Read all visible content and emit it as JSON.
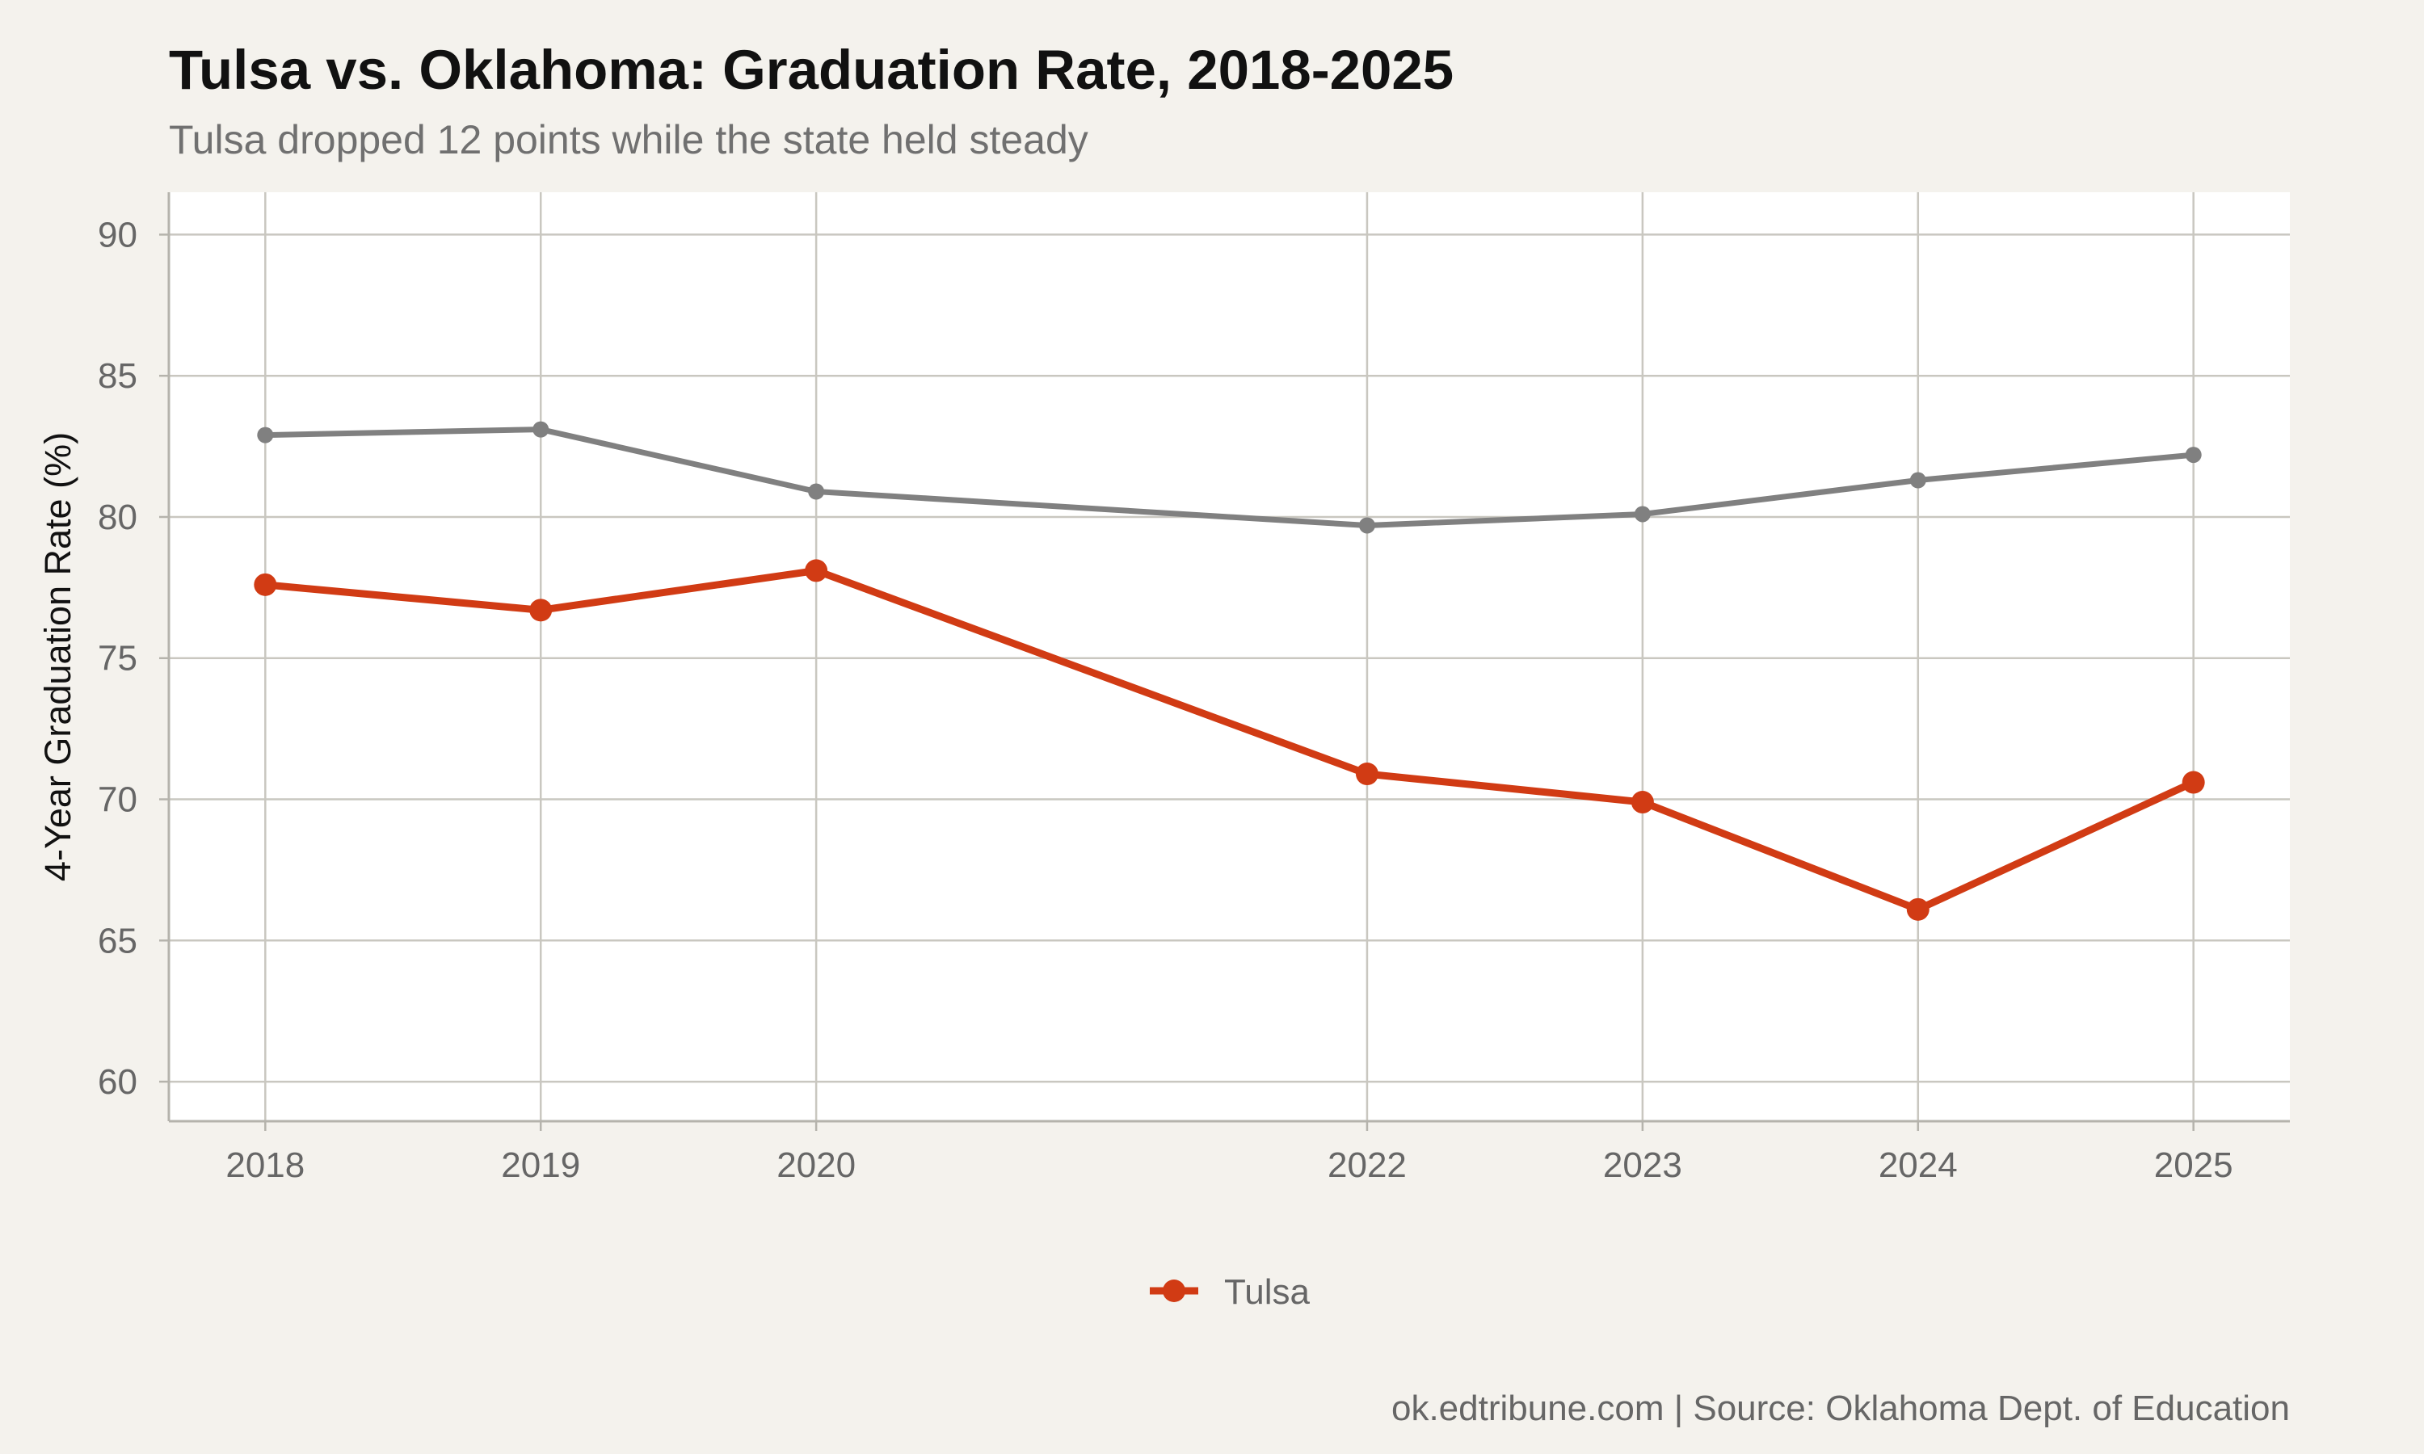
{
  "chart_data": {
    "type": "line",
    "title": "Tulsa vs. Oklahoma: Graduation Rate, 2018-2025",
    "subtitle": "Tulsa dropped 12 points while the state held steady",
    "xlabel": "",
    "ylabel": "4-Year Graduation Rate (%)",
    "x": [
      2018,
      2019,
      2020,
      2022,
      2023,
      2024,
      2025
    ],
    "x_tick_labels": [
      "2018",
      "2019",
      "2020",
      "2022",
      "2023",
      "2024",
      "2025"
    ],
    "xlim": [
      2017.65,
      2025.35
    ],
    "ylim": [
      58.6,
      91.5
    ],
    "y_ticks": [
      60,
      65,
      70,
      75,
      80,
      85,
      90
    ],
    "y_tick_labels": [
      "60",
      "65",
      "70",
      "75",
      "80",
      "85",
      "90"
    ],
    "grid": true,
    "legend_position": "bottom",
    "series": [
      {
        "name": "",
        "color": "#808080",
        "values": [
          82.9,
          83.1,
          80.9,
          79.7,
          80.1,
          81.3,
          82.2
        ]
      },
      {
        "name": "Tulsa",
        "color": "#d13b14",
        "values": [
          77.6,
          76.7,
          78.1,
          70.9,
          69.9,
          66.1,
          70.6
        ]
      }
    ],
    "legend": [
      {
        "label": "Tulsa",
        "color": "#d13b14"
      }
    ],
    "caption": "ok.edtribune.com | Source: Oklahoma Dept. of Education"
  }
}
